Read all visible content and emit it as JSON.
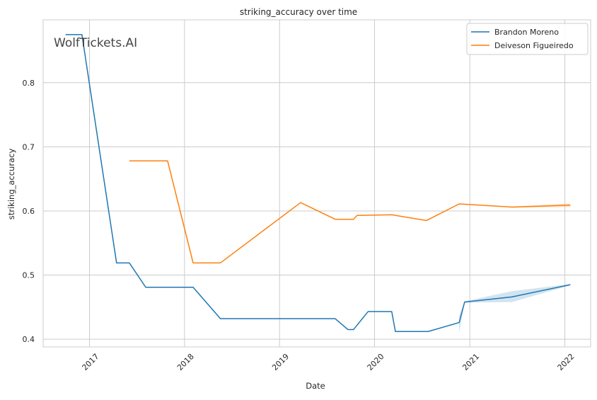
{
  "chart_data": {
    "type": "line",
    "title": "striking_accuracy over time",
    "xlabel": "Date",
    "ylabel": "striking_accuracy",
    "watermark": "WolfTickets.AI",
    "x_ticks": [
      "2017",
      "2018",
      "2019",
      "2020",
      "2021",
      "2022"
    ],
    "y_ticks": [
      "0.4",
      "0.5",
      "0.6",
      "0.7",
      "0.8"
    ],
    "xlim": [
      "2016-07-07",
      "2022-04-10"
    ],
    "ylim": [
      0.388,
      0.898
    ],
    "grid": true,
    "legend_position": "top-right",
    "series": [
      {
        "name": "Brandon Moreno",
        "color": "#1f77b4",
        "points": [
          {
            "x": "2016-10-01",
            "y": 0.875
          },
          {
            "x": "2016-12-03",
            "y": 0.875
          },
          {
            "x": "2017-04-15",
            "y": 0.519
          },
          {
            "x": "2017-06-03",
            "y": 0.519
          },
          {
            "x": "2017-08-05",
            "y": 0.481
          },
          {
            "x": "2018-02-03",
            "y": 0.481
          },
          {
            "x": "2018-05-19",
            "y": 0.432
          },
          {
            "x": "2019-08-03",
            "y": 0.432
          },
          {
            "x": "2019-09-21",
            "y": 0.415
          },
          {
            "x": "2019-10-12",
            "y": 0.415
          },
          {
            "x": "2019-12-07",
            "y": 0.443
          },
          {
            "x": "2020-03-07",
            "y": 0.443
          },
          {
            "x": "2020-03-21",
            "y": 0.412
          },
          {
            "x": "2020-07-25",
            "y": 0.412
          },
          {
            "x": "2020-11-21",
            "y": 0.426
          },
          {
            "x": "2020-12-12",
            "y": 0.458
          },
          {
            "x": "2021-06-12",
            "y": 0.466
          },
          {
            "x": "2022-01-22",
            "y": 0.485
          }
        ],
        "band": [
          {
            "x": "2020-11-21",
            "lower": 0.41,
            "upper": 0.437
          },
          {
            "x": "2020-12-12",
            "lower": 0.457,
            "upper": 0.459
          },
          {
            "x": "2021-06-12",
            "lower": 0.458,
            "upper": 0.475
          },
          {
            "x": "2022-01-22",
            "lower": 0.484,
            "upper": 0.486
          }
        ]
      },
      {
        "name": "Deiveson Figueiredo",
        "color": "#ff7f0e",
        "points": [
          {
            "x": "2017-06-03",
            "y": 0.678
          },
          {
            "x": "2017-10-28",
            "y": 0.678
          },
          {
            "x": "2018-02-03",
            "y": 0.519
          },
          {
            "x": "2018-05-19",
            "y": 0.519
          },
          {
            "x": "2019-03-23",
            "y": 0.613
          },
          {
            "x": "2019-08-03",
            "y": 0.587
          },
          {
            "x": "2019-10-12",
            "y": 0.587
          },
          {
            "x": "2019-10-26",
            "y": 0.593
          },
          {
            "x": "2020-03-07",
            "y": 0.594
          },
          {
            "x": "2020-07-18",
            "y": 0.585
          },
          {
            "x": "2020-11-21",
            "y": 0.611
          },
          {
            "x": "2021-06-12",
            "y": 0.606
          },
          {
            "x": "2022-01-22",
            "y": 0.609
          }
        ],
        "band": [
          {
            "x": "2021-06-12",
            "lower": 0.605,
            "upper": 0.607
          },
          {
            "x": "2022-01-22",
            "lower": 0.606,
            "upper": 0.612
          }
        ]
      }
    ]
  },
  "colors": {
    "background": "#ffffff",
    "grid": "#cccccc",
    "axes_edge": "#cccccc",
    "watermark": "#c0c0c0"
  }
}
